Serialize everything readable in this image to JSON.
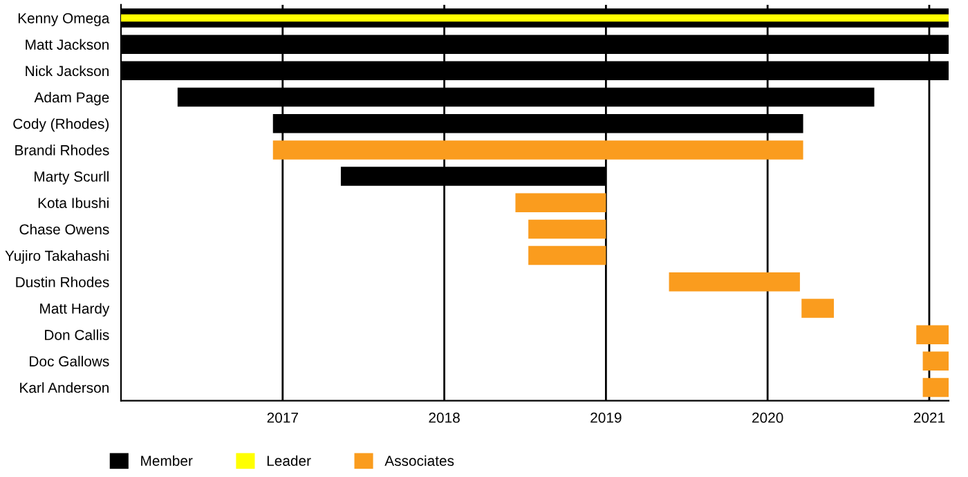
{
  "chart_data": {
    "type": "bar",
    "orientation": "horizontal",
    "categories": [
      "Kenny Omega",
      "Matt Jackson",
      "Nick Jackson",
      "Adam Page",
      "Cody (Rhodes)",
      "Brandi Rhodes",
      "Marty Scurll",
      "Kota Ibushi",
      "Chase Owens",
      "Yujiro Takahashi",
      "Dustin Rhodes",
      "Matt Hardy",
      "Don Callis",
      "Doc Gallows",
      "Karl Anderson"
    ],
    "series": [
      {
        "name": "Member",
        "color": "#000000",
        "base": [
          2016.0,
          2016.0,
          2016.0,
          2016.35,
          2016.94,
          null,
          2017.36,
          null,
          null,
          null,
          null,
          null,
          null,
          null,
          null
        ],
        "values": [
          5.12,
          5.12,
          5.12,
          4.31,
          3.28,
          null,
          1.64,
          null,
          null,
          null,
          null,
          null,
          null,
          null,
          null
        ]
      },
      {
        "name": "Leader",
        "color": "#ffff00",
        "base": [
          2016.0,
          null,
          null,
          null,
          null,
          null,
          null,
          null,
          null,
          null,
          null,
          null,
          null,
          null,
          null
        ],
        "values": [
          5.12,
          null,
          null,
          null,
          null,
          null,
          null,
          null,
          null,
          null,
          null,
          null,
          null,
          null,
          null
        ]
      },
      {
        "name": "Associates",
        "color": "#fa9c1e",
        "base": [
          null,
          null,
          null,
          null,
          null,
          2016.94,
          null,
          2018.44,
          2018.52,
          2018.52,
          2019.39,
          2020.21,
          2020.92,
          2020.96,
          2020.96
        ],
        "values": [
          null,
          null,
          null,
          null,
          null,
          3.28,
          null,
          0.56,
          0.48,
          0.48,
          0.81,
          0.2,
          0.2,
          0.16,
          0.16
        ]
      }
    ],
    "xlim": [
      2016.0,
      2021.12
    ],
    "xticks": [
      2017,
      2018,
      2019,
      2020,
      2021
    ],
    "grid": "x",
    "legend": "bottom"
  }
}
